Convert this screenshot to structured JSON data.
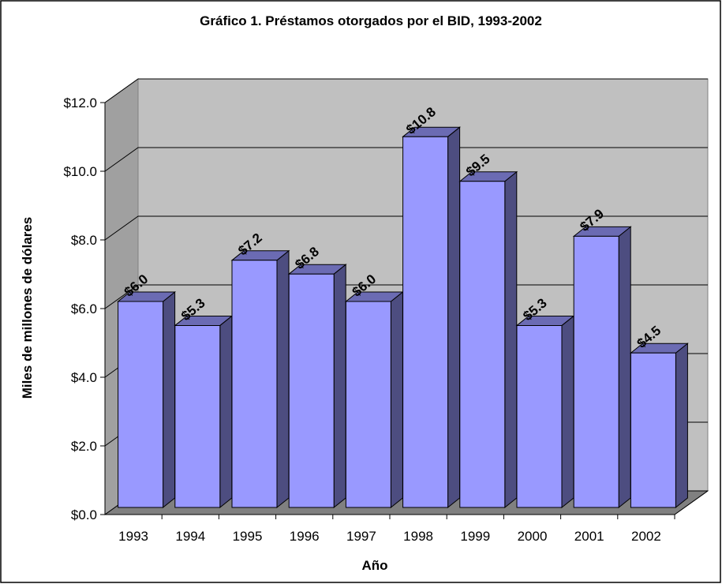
{
  "chart_data": {
    "type": "bar3d",
    "title": "Gráfico 1. Préstamos otorgados por el BID, 1993-2002",
    "xlabel": "Año",
    "ylabel": "Miles de millones de dólares",
    "categories": [
      "1993",
      "1994",
      "1995",
      "1996",
      "1997",
      "1998",
      "1999",
      "2000",
      "2001",
      "2002"
    ],
    "values": [
      6.0,
      5.3,
      7.2,
      6.8,
      6.0,
      10.8,
      9.5,
      5.3,
      7.9,
      4.5
    ],
    "value_labels": [
      "$6.0",
      "$5.3",
      "$7.2",
      "$6.8",
      "$6.0",
      "$10.8",
      "$9.5",
      "$5.3",
      "$7.9",
      "$4.5"
    ],
    "color": "#9999ff",
    "ylim": [
      0,
      12
    ],
    "yticks": [
      {
        "value": 0,
        "label": "$0.0"
      },
      {
        "value": 2,
        "label": "$2.0"
      },
      {
        "value": 4,
        "label": "$4.0"
      },
      {
        "value": 6,
        "label": "$6.0"
      },
      {
        "value": 8,
        "label": "$8.0"
      },
      {
        "value": 10,
        "label": "$10.0"
      },
      {
        "value": 12,
        "label": "$12.0"
      }
    ],
    "grid": true
  }
}
